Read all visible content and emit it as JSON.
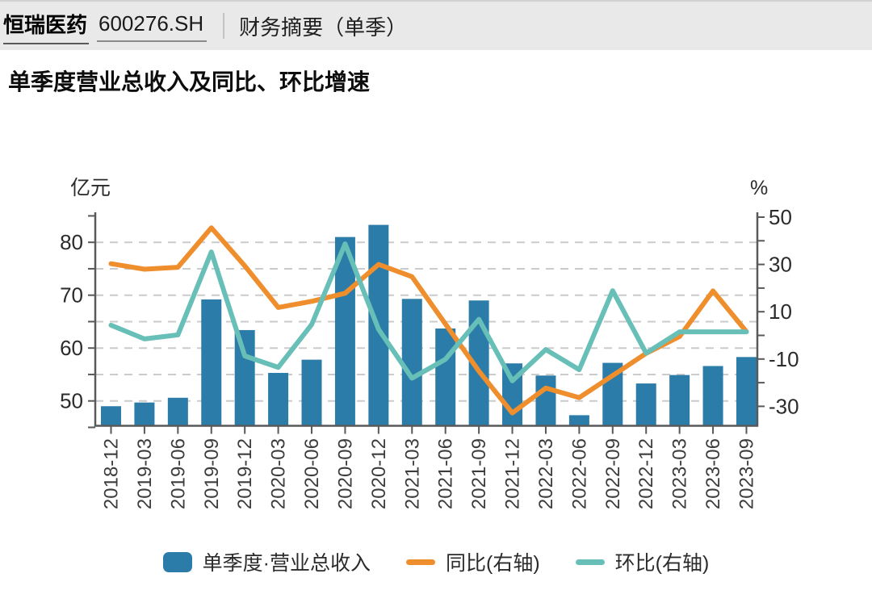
{
  "header": {
    "stock_name": "恒瑞医药",
    "stock_code": "600276.SH",
    "page_tab": "财务摘要（单季）"
  },
  "title": "单季度营业总收入及同比、环比增速",
  "colors": {
    "bar": "#2B7CA8",
    "yoy_line": "#EF8E2D",
    "qoq_line": "#68BFB8",
    "grid": "#cbcbcb",
    "axis": "#58595b",
    "tick_text": "#2b2b2b",
    "xlabel_text": "#3d3d3d",
    "header_bg": "#e9e9e9"
  },
  "chart_data": {
    "type": "bar+line (dual axis)",
    "title": "单季度营业总收入及同比、环比增速",
    "categories": [
      "2018-12",
      "2019-03",
      "2019-06",
      "2019-09",
      "2019-12",
      "2020-03",
      "2020-06",
      "2020-09",
      "2020-12",
      "2021-03",
      "2021-06",
      "2021-09",
      "2021-12",
      "2022-03",
      "2022-06",
      "2022-09",
      "2022-12",
      "2023-03",
      "2023-06",
      "2023-09"
    ],
    "series": [
      {
        "name": "单季度·营业总收入",
        "type": "bar",
        "axis": "left",
        "unit": "亿元",
        "values": [
          49.0,
          49.7,
          50.6,
          69.2,
          63.4,
          55.3,
          57.8,
          81.0,
          83.3,
          69.3,
          63.7,
          69.0,
          57.1,
          54.8,
          47.3,
          57.2,
          53.3,
          54.9,
          56.6,
          58.3
        ]
      },
      {
        "name": "同比(右轴)",
        "type": "line",
        "axis": "right",
        "unit": "%",
        "values": [
          30.3,
          28.0,
          28.8,
          45.5,
          29.4,
          11.8,
          14.4,
          17.8,
          30.0,
          24.8,
          4.8,
          -15.1,
          -32.8,
          -22.3,
          -26.3,
          -17.0,
          -7.6,
          -0.5,
          18.8,
          1.6
        ]
      },
      {
        "name": "环比(右轴)",
        "type": "line",
        "axis": "right",
        "unit": "%",
        "values": [
          4.3,
          -1.5,
          0.2,
          35.3,
          -8.7,
          -13.5,
          4.6,
          38.7,
          2.6,
          -18.1,
          -10.1,
          6.8,
          -19.2,
          -6.0,
          -14.5,
          18.9,
          -7.5,
          1.5,
          1.5,
          1.5
        ]
      }
    ],
    "left_axis": {
      "title": "亿元",
      "tick_labels": [
        "50",
        "60",
        "70",
        "80"
      ],
      "minor_ticks": [
        45,
        55,
        65,
        75,
        85
      ],
      "range": [
        45.4,
        85.7
      ]
    },
    "right_axis": {
      "title": "%",
      "tick_labels": [
        "50",
        "30",
        "10",
        "-10",
        "-30"
      ],
      "minor_ticks": [
        40,
        20,
        0,
        -20
      ],
      "range": [
        -38.2,
        50.5
      ]
    },
    "grid": "horizontal dashed",
    "legend_position": "bottom"
  }
}
